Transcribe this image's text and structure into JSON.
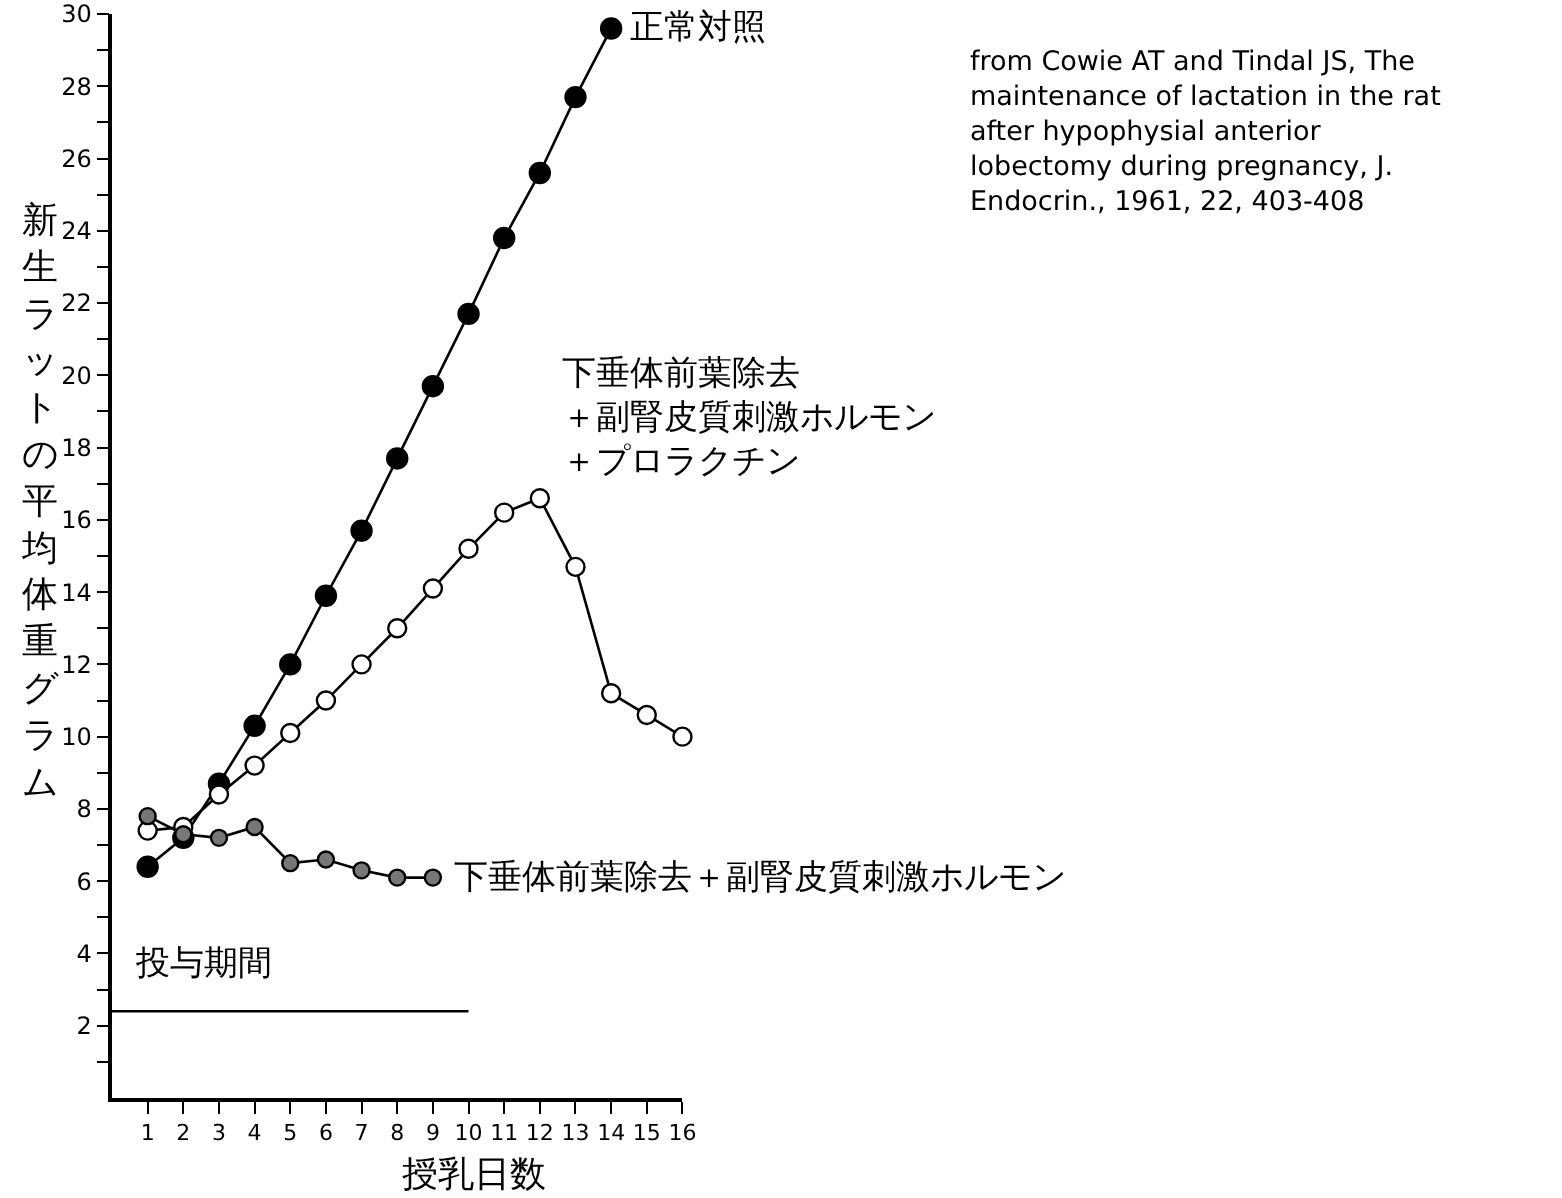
{
  "chart_data": {
    "type": "line",
    "xlabel": "授乳日数",
    "ylabel": "新生ラットの平均体重グラム",
    "x": [
      1,
      2,
      3,
      4,
      5,
      6,
      7,
      8,
      9,
      10,
      11,
      12,
      13,
      14,
      15,
      16
    ],
    "series": [
      {
        "name": "正常対照",
        "color": "#000000",
        "values": [
          6.4,
          7.2,
          8.7,
          10.3,
          12.0,
          13.9,
          15.7,
          17.7,
          19.7,
          21.7,
          23.8,
          25.6,
          27.7,
          29.6,
          null,
          null
        ]
      },
      {
        "name": "下垂体前葉除去＋副腎皮質刺激ホルモン＋プロラクチン",
        "color": "#000000",
        "values": [
          7.4,
          7.5,
          8.4,
          9.2,
          10.1,
          11.0,
          12.0,
          13.0,
          14.1,
          15.2,
          16.2,
          16.6,
          14.7,
          11.2,
          10.6,
          10.0
        ]
      },
      {
        "name": "下垂体前葉除去＋副腎皮質刺激ホルモン",
        "color": "#000000",
        "values": [
          7.8,
          7.3,
          7.2,
          7.5,
          6.5,
          6.6,
          6.3,
          6.1,
          6.1,
          null,
          null,
          null,
          null,
          null,
          null,
          null
        ]
      },
      {
        "name": "投与期間",
        "color": "#000000",
        "x": [
          0,
          10
        ],
        "values": [
          2.4,
          2.4
        ],
        "marker": "none"
      }
    ],
    "annotations": [
      "from Cowie AT and Tindal JS, The\nmaintenance of lactation in the rat\nafter hypophysial anterior\nlobectomy during pregnancy, J.\nEndocrin., 1961, 22, 403-408"
    ],
    "xlim": [
      0,
      16
    ],
    "xticks": [
      1,
      2,
      3,
      4,
      5,
      6,
      7,
      8,
      9,
      10,
      11,
      12,
      13,
      14,
      15,
      16
    ],
    "ylim": [
      0,
      30
    ],
    "yticks": [
      {
        "value": 1,
        "label": null
      },
      2,
      {
        "value": 3,
        "label": null
      },
      4,
      {
        "value": 5,
        "label": null
      },
      6,
      {
        "value": 7,
        "label": null
      },
      8,
      {
        "value": 9,
        "label": null
      },
      10,
      {
        "value": 11,
        "label": null
      },
      12,
      {
        "value": 13,
        "label": null
      },
      14,
      {
        "value": 15,
        "label": null
      },
      16,
      {
        "value": 17,
        "label": null
      },
      18,
      {
        "value": 19,
        "label": null
      },
      20,
      {
        "value": 21,
        "label": null
      },
      22,
      {
        "value": 23,
        "label": null
      },
      24,
      {
        "value": 25,
        "label": null
      },
      26,
      {
        "value": 27,
        "label": null
      },
      28,
      {
        "value": 29,
        "label": null
      },
      30
    ],
    "marker": "circle",
    "line_style": "solid",
    "legend": "bottom left"
  }
}
